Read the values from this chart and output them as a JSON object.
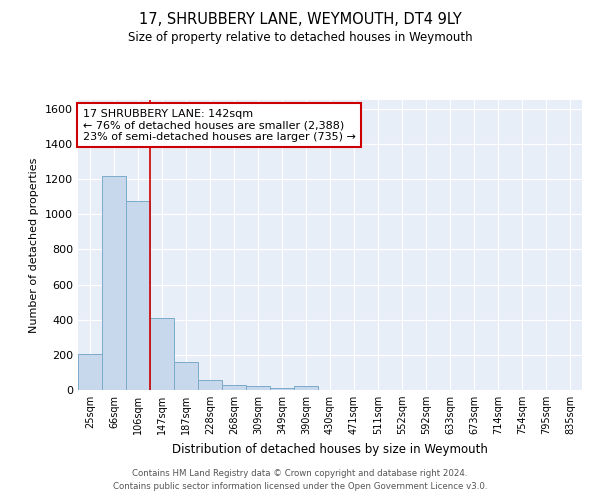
{
  "title1": "17, SHRUBBERY LANE, WEYMOUTH, DT4 9LY",
  "title2": "Size of property relative to detached houses in Weymouth",
  "xlabel": "Distribution of detached houses by size in Weymouth",
  "ylabel": "Number of detached properties",
  "bar_labels": [
    "25sqm",
    "66sqm",
    "106sqm",
    "147sqm",
    "187sqm",
    "228sqm",
    "268sqm",
    "309sqm",
    "349sqm",
    "390sqm",
    "430sqm",
    "471sqm",
    "511sqm",
    "552sqm",
    "592sqm",
    "633sqm",
    "673sqm",
    "714sqm",
    "754sqm",
    "795sqm",
    "835sqm"
  ],
  "bar_heights": [
    205,
    1220,
    1075,
    410,
    160,
    58,
    27,
    20,
    10,
    20,
    0,
    0,
    0,
    0,
    0,
    0,
    0,
    0,
    0,
    0,
    0
  ],
  "bar_color": "#c8d8ec",
  "bar_edge_color": "#7aaacb",
  "vline_index": 3,
  "vline_color": "#cc0000",
  "annotation_line1": "17 SHRUBBERY LANE: 142sqm",
  "annotation_line2": "← 76% of detached houses are smaller (2,388)",
  "annotation_line3": "23% of semi-detached houses are larger (735) →",
  "annotation_box_facecolor": "#ffffff",
  "annotation_box_edgecolor": "#cc0000",
  "ylim": [
    0,
    1650
  ],
  "yticks": [
    0,
    200,
    400,
    600,
    800,
    1000,
    1200,
    1400,
    1600
  ],
  "bg_color": "#e8eef8",
  "grid_color": "#ffffff",
  "footer1": "Contains HM Land Registry data © Crown copyright and database right 2024.",
  "footer2": "Contains public sector information licensed under the Open Government Licence v3.0."
}
